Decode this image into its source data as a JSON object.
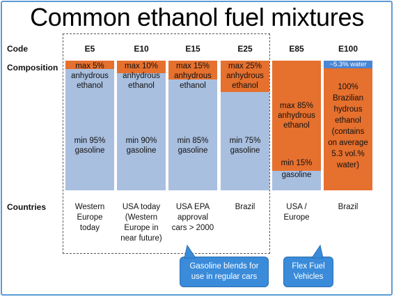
{
  "title": "Common ethanol fuel mixtures",
  "labels": {
    "code": "Code",
    "composition": "Composition",
    "countries": "Countries"
  },
  "colors": {
    "ethanol": "#e6702e",
    "gasoline": "#a9bfdf",
    "water": "#4a86d4",
    "callout": "#3a8bd9"
  },
  "mixtures": [
    {
      "code": "E5",
      "ethanol_fraction": 0.05,
      "ethanol_text": "max 5%",
      "ethanol_detail": [
        "anhydrous",
        "ethanol"
      ],
      "gasoline_text": [
        "min 95%",
        "gasoline"
      ],
      "countries": [
        "Western",
        "Europe",
        "today"
      ]
    },
    {
      "code": "E10",
      "ethanol_fraction": 0.1,
      "ethanol_text": "max 10%",
      "ethanol_detail": [
        "anhydrous",
        "ethanol"
      ],
      "gasoline_text": [
        "min 90%",
        "gasoline"
      ],
      "countries": [
        "USA today",
        "(Western",
        "Europe in",
        "near future)"
      ]
    },
    {
      "code": "E15",
      "ethanol_fraction": 0.15,
      "ethanol_text": "max 15%",
      "ethanol_detail": [
        "anhydrous",
        "ethanol"
      ],
      "gasoline_text": [
        "min 85%",
        "gasoline"
      ],
      "countries": [
        "USA EPA",
        "approval",
        "cars > 2000"
      ]
    },
    {
      "code": "E25",
      "ethanol_fraction": 0.25,
      "ethanol_text": "max 25%",
      "ethanol_detail": [
        "anhydrous",
        "ethanol"
      ],
      "gasoline_text": [
        "min 75%",
        "gasoline"
      ],
      "countries": [
        "Brazil"
      ]
    },
    {
      "code": "E85",
      "ethanol_fraction": 0.85,
      "ethanol_text": "max 85%",
      "ethanol_detail": [
        "anhydrous",
        "ethanol"
      ],
      "gasoline_text": [
        "min 15%",
        "gasoline"
      ],
      "countries": [
        "USA /",
        "Europe"
      ]
    },
    {
      "code": "E100",
      "ethanol_fraction": 1.0,
      "water_text": "~5.3% water",
      "ethanol_lines": [
        "100%",
        "Brazilian",
        "hydrous",
        "ethanol",
        "(contains",
        "on average",
        "5.3 vol.%",
        "water)"
      ],
      "countries": [
        "Brazil"
      ]
    }
  ],
  "callouts": {
    "gasoline_blends": [
      "Gasoline blends for",
      "use in regular cars"
    ],
    "flex_fuel": [
      "Flex Fuel",
      "Vehicles"
    ]
  }
}
